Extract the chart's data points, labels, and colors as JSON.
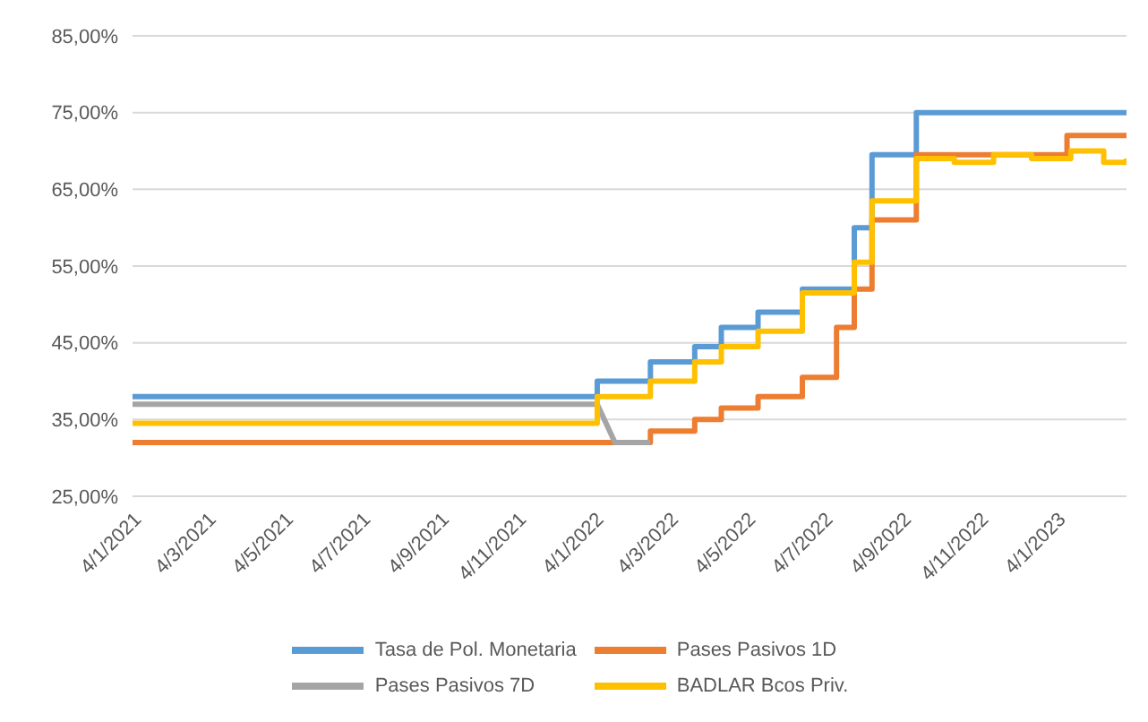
{
  "chart_data": {
    "type": "step",
    "series": [
      {
        "name": "Tasa de Pol. Monetaria",
        "color": "#5b9bd5",
        "x": [
          "2021-01-04",
          "2022-01-06",
          "2022-02-17",
          "2022-03-24",
          "2022-04-14",
          "2022-05-13",
          "2022-06-17",
          "2022-07-28",
          "2022-08-11",
          "2022-09-15",
          "2023-02-28"
        ],
        "values": [
          38,
          40,
          42.5,
          44.5,
          47,
          49,
          52,
          60,
          69.5,
          75,
          75
        ]
      },
      {
        "name": "Pases Pasivos 1D",
        "color": "#ed7d31",
        "x": [
          "2021-01-04",
          "2022-02-17",
          "2022-03-24",
          "2022-04-14",
          "2022-05-13",
          "2022-06-17",
          "2022-07-14",
          "2022-07-28",
          "2022-08-11",
          "2022-09-15",
          "2023-01-12",
          "2023-02-28"
        ],
        "values": [
          32,
          33.5,
          35,
          36.5,
          38,
          40.5,
          47,
          52,
          61,
          69.5,
          72,
          72
        ]
      },
      {
        "name": "Pases Pasivos 7D",
        "color": "#a5a5a5",
        "type": "line",
        "x": [
          "2021-01-04",
          "2022-01-06",
          "2022-01-20",
          "2022-02-17"
        ],
        "values": [
          37,
          37,
          32,
          32
        ]
      },
      {
        "name": "BADLAR Bcos Priv.",
        "color": "#ffc000",
        "x": [
          "2021-01-04",
          "2022-01-06",
          "2022-02-17",
          "2022-03-24",
          "2022-04-14",
          "2022-05-13",
          "2022-06-17",
          "2022-07-28",
          "2022-08-11",
          "2022-09-15",
          "2022-10-15",
          "2022-11-15",
          "2022-12-15",
          "2023-01-15",
          "2023-02-10",
          "2023-02-28"
        ],
        "values": [
          34.5,
          38,
          40,
          42.5,
          44.5,
          46.5,
          51.5,
          55.5,
          63.5,
          69,
          68.5,
          69.5,
          69,
          70,
          68.5,
          69
        ]
      }
    ],
    "xlim": [
      "2021-01-04",
      "2023-02-28"
    ],
    "xticks": [
      {
        "value": "2021-01-04",
        "label": "4/1/2021"
      },
      {
        "value": "2021-03-04",
        "label": "4/3/2021"
      },
      {
        "value": "2021-05-04",
        "label": "4/5/2021"
      },
      {
        "value": "2021-07-04",
        "label": "4/7/2021"
      },
      {
        "value": "2021-09-04",
        "label": "4/9/2021"
      },
      {
        "value": "2021-11-04",
        "label": "4/11/2021"
      },
      {
        "value": "2022-01-04",
        "label": "4/1/2022"
      },
      {
        "value": "2022-03-04",
        "label": "4/3/2022"
      },
      {
        "value": "2022-05-04",
        "label": "4/5/2022"
      },
      {
        "value": "2022-07-04",
        "label": "4/7/2022"
      },
      {
        "value": "2022-09-04",
        "label": "4/9/2022"
      },
      {
        "value": "2022-11-04",
        "label": "4/11/2022"
      },
      {
        "value": "2023-01-04",
        "label": "4/1/2023"
      }
    ],
    "ylim": [
      25,
      85
    ],
    "yticks": [
      {
        "value": 25,
        "label": "25,00%"
      },
      {
        "value": 35,
        "label": "35,00%"
      },
      {
        "value": 45,
        "label": "45,00%"
      },
      {
        "value": 55,
        "label": "55,00%"
      },
      {
        "value": 65,
        "label": "65,00%"
      },
      {
        "value": 75,
        "label": "75,00%"
      },
      {
        "value": 85,
        "label": "85,00%"
      }
    ],
    "grid": "y",
    "legend": "bottom"
  }
}
